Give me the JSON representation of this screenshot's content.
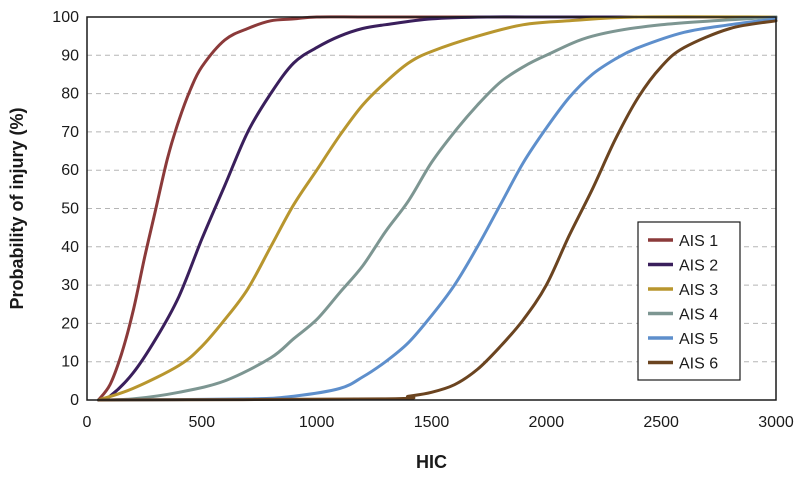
{
  "chart_data": {
    "type": "line",
    "title": "",
    "xlabel": "HIC",
    "ylabel": "Probability of injury (%)",
    "xlim": [
      0,
      3000
    ],
    "ylim": [
      0,
      100
    ],
    "x_ticks": [
      0,
      500,
      1000,
      1500,
      2000,
      2500,
      3000
    ],
    "y_ticks": [
      0,
      10,
      20,
      30,
      40,
      50,
      60,
      70,
      80,
      90,
      100
    ],
    "grid": "horizontal-dashed",
    "legend_position": "bottom-right",
    "series": [
      {
        "name": "AIS 1",
        "color": "#8b3a3a",
        "x": [
          50,
          100,
          150,
          200,
          250,
          300,
          350,
          400,
          450,
          500,
          600,
          700,
          800,
          900,
          1000,
          1200,
          1500,
          3000
        ],
        "y": [
          0,
          4,
          12,
          23,
          37,
          50,
          63,
          73,
          81,
          87,
          94,
          97,
          99,
          99.5,
          100,
          100,
          100,
          100
        ]
      },
      {
        "name": "AIS 2",
        "color": "#3a1f5c",
        "x": [
          50,
          100,
          200,
          300,
          400,
          500,
          600,
          700,
          800,
          900,
          1000,
          1100,
          1200,
          1300,
          1500,
          1750,
          2000,
          3000
        ],
        "y": [
          0,
          1,
          7,
          16,
          27,
          42,
          56,
          70,
          80,
          88,
          92,
          95,
          97,
          98,
          99.5,
          100,
          100,
          100
        ]
      },
      {
        "name": "AIS 3",
        "color": "#b8962e",
        "x": [
          50,
          200,
          400,
          500,
          600,
          700,
          800,
          900,
          1000,
          1100,
          1200,
          1300,
          1400,
          1500,
          1700,
          1900,
          2100,
          2400,
          3000
        ],
        "y": [
          0,
          3,
          9,
          14,
          21,
          29,
          40,
          51,
          60,
          69,
          77,
          83,
          88,
          91,
          95,
          98,
          99,
          100,
          100
        ]
      },
      {
        "name": "AIS 4",
        "color": "#7d9692",
        "x": [
          50,
          200,
          400,
          600,
          800,
          900,
          1000,
          1100,
          1200,
          1300,
          1400,
          1500,
          1600,
          1700,
          1800,
          1900,
          2000,
          2200,
          2500,
          3000
        ],
        "y": [
          0,
          0.3,
          2,
          5,
          11,
          16,
          21,
          28,
          35,
          44,
          52,
          62,
          70,
          77,
          83,
          87,
          90,
          95,
          98,
          100
        ]
      },
      {
        "name": "AIS 5",
        "color": "#5e8fcc",
        "x": [
          50,
          700,
          900,
          1100,
          1200,
          1300,
          1400,
          1500,
          1600,
          1700,
          1800,
          1900,
          2000,
          2100,
          2200,
          2300,
          2400,
          2600,
          2800,
          3000
        ],
        "y": [
          0,
          0.3,
          1,
          3,
          6,
          10,
          15,
          22,
          30,
          40,
          51,
          62,
          71,
          79,
          85,
          89,
          92,
          96,
          98,
          99.5
        ]
      },
      {
        "name": "AIS 6",
        "color": "#6b4420",
        "x": [
          50,
          1300,
          1400,
          1500,
          1600,
          1700,
          1800,
          1900,
          2000,
          2100,
          2200,
          2300,
          2400,
          2500,
          2600,
          2800,
          3000
        ],
        "y": [
          0,
          0.3,
          1,
          2,
          4,
          8,
          14,
          21,
          30,
          43,
          55,
          68,
          79,
          87,
          92,
          97,
          99
        ]
      }
    ]
  }
}
